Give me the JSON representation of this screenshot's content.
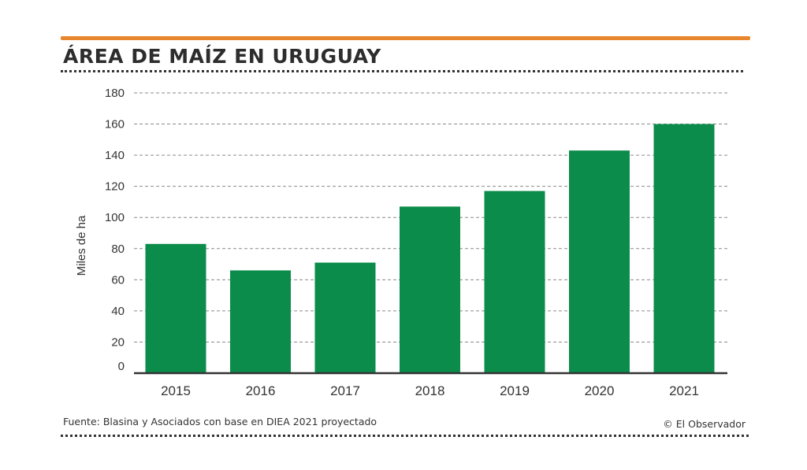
{
  "header": {
    "title": "ÁREA DE MAÍZ EN URUGUAY"
  },
  "footer": {
    "source": "Fuente: Blasina y Asociados con base en DIEA 2021 proyectado",
    "credit": "© El Observador"
  },
  "colors": {
    "accent_bar": "#e8862e",
    "bar": "#0b8c4a",
    "grid": "#8a8a8a",
    "axis": "#333333",
    "text": "#333333"
  },
  "chart_data": {
    "type": "bar",
    "title": "ÁREA DE MAÍZ EN URUGUAY",
    "xlabel": "",
    "ylabel": "Miles de ha",
    "categories": [
      "2015",
      "2016",
      "2017",
      "2018",
      "2019",
      "2020",
      "2021"
    ],
    "values": [
      83,
      66,
      71,
      107,
      117,
      143,
      160
    ],
    "ylim": [
      0,
      180
    ],
    "yticks": [
      0,
      20,
      40,
      60,
      80,
      100,
      120,
      140,
      160,
      180
    ],
    "grid": true,
    "legend": "none"
  }
}
